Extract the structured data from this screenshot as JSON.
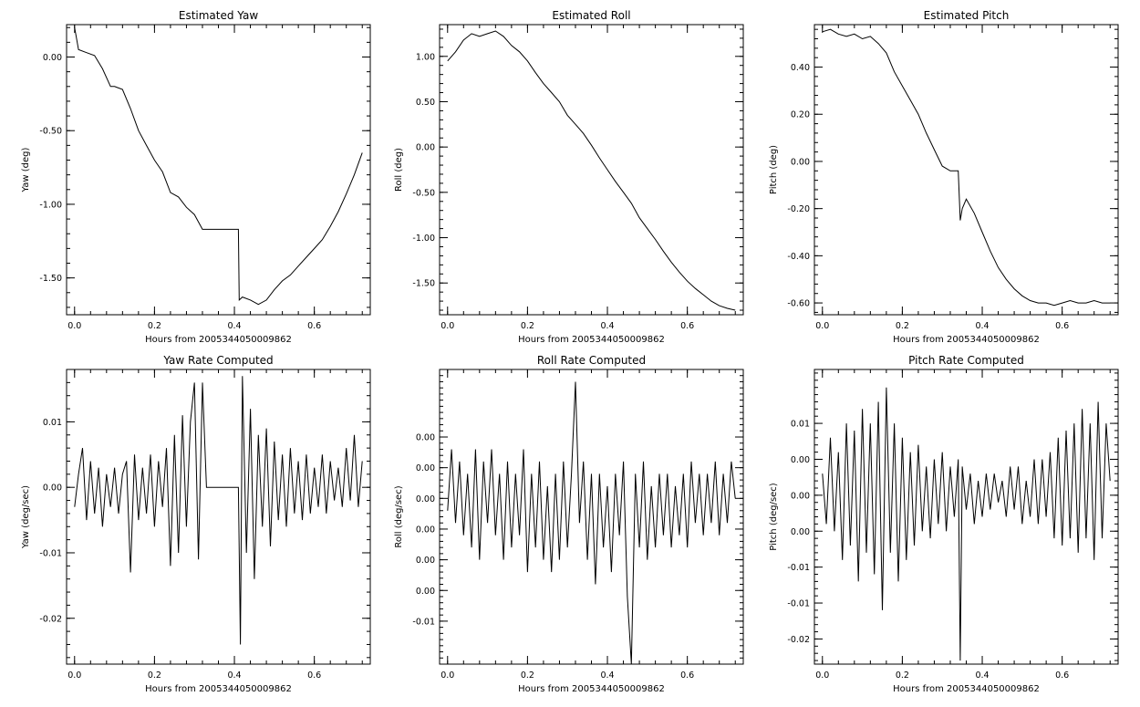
{
  "chart_data": [
    {
      "type": "line",
      "title": "Estimated Yaw",
      "xlabel": "Hours from 2005344050009862",
      "ylabel": "Yaw (deg)",
      "xlim": [
        -0.02,
        0.74
      ],
      "ylim": [
        -1.75,
        0.22
      ],
      "xticks": [
        0.0,
        0.2,
        0.4,
        0.6
      ],
      "xtick_labels": [
        "0.0",
        "0.2",
        "0.4",
        "0.6"
      ],
      "yticks": [
        0.0,
        -0.5,
        -1.0,
        -1.5
      ],
      "ytick_labels": [
        "0.00",
        "-0.50",
        "-1.00",
        "-1.50"
      ],
      "series": [
        {
          "x": [
            0.0,
            0.01,
            0.03,
            0.05,
            0.07,
            0.09,
            0.1,
            0.12,
            0.14,
            0.16,
            0.18,
            0.2,
            0.22,
            0.24,
            0.26,
            0.28,
            0.3,
            0.32,
            0.33,
            0.41,
            0.412,
            0.42,
            0.44,
            0.46,
            0.48,
            0.5,
            0.52,
            0.54,
            0.56,
            0.58,
            0.6,
            0.62,
            0.64,
            0.66,
            0.68,
            0.7,
            0.72
          ],
          "y": [
            0.2,
            0.05,
            0.03,
            0.01,
            -0.08,
            -0.2,
            -0.2,
            -0.22,
            -0.35,
            -0.5,
            -0.6,
            -0.7,
            -0.78,
            -0.92,
            -0.95,
            -1.02,
            -1.07,
            -1.17,
            -1.17,
            -1.17,
            -1.65,
            -1.63,
            -1.65,
            -1.68,
            -1.65,
            -1.58,
            -1.52,
            -1.48,
            -1.42,
            -1.36,
            -1.3,
            -1.24,
            -1.15,
            -1.05,
            -0.93,
            -0.8,
            -0.65
          ]
        }
      ]
    },
    {
      "type": "line",
      "title": "Estimated Roll",
      "xlabel": "Hours from 2005344050009862",
      "ylabel": "Roll (deg)",
      "xlim": [
        -0.02,
        0.74
      ],
      "ylim": [
        -1.85,
        1.35
      ],
      "xticks": [
        0.0,
        0.2,
        0.4,
        0.6
      ],
      "xtick_labels": [
        "0.0",
        "0.2",
        "0.4",
        "0.6"
      ],
      "yticks": [
        1.0,
        0.5,
        0.0,
        -0.5,
        -1.0,
        -1.5
      ],
      "ytick_labels": [
        "1.00",
        "0.50",
        "0.00",
        "-0.50",
        "-1.00",
        "-1.50"
      ],
      "series": [
        {
          "x": [
            0.0,
            0.02,
            0.04,
            0.06,
            0.08,
            0.1,
            0.12,
            0.14,
            0.16,
            0.18,
            0.2,
            0.22,
            0.24,
            0.26,
            0.28,
            0.3,
            0.32,
            0.34,
            0.36,
            0.38,
            0.4,
            0.42,
            0.44,
            0.46,
            0.48,
            0.5,
            0.52,
            0.54,
            0.56,
            0.58,
            0.6,
            0.62,
            0.64,
            0.66,
            0.68,
            0.7,
            0.72
          ],
          "y": [
            0.95,
            1.05,
            1.18,
            1.25,
            1.22,
            1.25,
            1.28,
            1.22,
            1.12,
            1.05,
            0.95,
            0.82,
            0.7,
            0.6,
            0.5,
            0.35,
            0.25,
            0.15,
            0.02,
            -0.12,
            -0.25,
            -0.38,
            -0.5,
            -0.62,
            -0.78,
            -0.9,
            -1.02,
            -1.15,
            -1.27,
            -1.38,
            -1.48,
            -1.56,
            -1.63,
            -1.7,
            -1.75,
            -1.78,
            -1.8
          ]
        }
      ]
    },
    {
      "type": "line",
      "title": "Estimated Pitch",
      "xlabel": "Hours from 2005344050009862",
      "ylabel": "Pitch (deg)",
      "xlim": [
        -0.02,
        0.74
      ],
      "ylim": [
        -0.65,
        0.58
      ],
      "xticks": [
        0.0,
        0.2,
        0.4,
        0.6
      ],
      "xtick_labels": [
        "0.0",
        "0.2",
        "0.4",
        "0.6"
      ],
      "yticks": [
        0.4,
        0.2,
        0.0,
        -0.2,
        -0.4,
        -0.6
      ],
      "ytick_labels": [
        "0.40",
        "0.20",
        "0.00",
        "-0.20",
        "-0.40",
        "-0.60"
      ],
      "series": [
        {
          "x": [
            0.0,
            0.02,
            0.04,
            0.06,
            0.08,
            0.1,
            0.12,
            0.14,
            0.16,
            0.18,
            0.2,
            0.22,
            0.24,
            0.26,
            0.28,
            0.3,
            0.32,
            0.33,
            0.34,
            0.345,
            0.35,
            0.36,
            0.38,
            0.4,
            0.42,
            0.44,
            0.46,
            0.48,
            0.5,
            0.52,
            0.54,
            0.56,
            0.58,
            0.6,
            0.62,
            0.64,
            0.66,
            0.68,
            0.7,
            0.72
          ],
          "y": [
            0.55,
            0.56,
            0.54,
            0.53,
            0.54,
            0.52,
            0.53,
            0.5,
            0.46,
            0.38,
            0.32,
            0.26,
            0.2,
            0.12,
            0.05,
            -0.02,
            -0.04,
            -0.04,
            -0.04,
            -0.25,
            -0.2,
            -0.16,
            -0.22,
            -0.3,
            -0.38,
            -0.45,
            -0.5,
            -0.54,
            -0.57,
            -0.59,
            -0.6,
            -0.6,
            -0.61,
            -0.6,
            -0.59,
            -0.6,
            -0.6,
            -0.59,
            -0.6,
            -0.6
          ]
        }
      ]
    },
    {
      "type": "line",
      "title": "Yaw Rate Computed",
      "xlabel": "Hours from 2005344050009862",
      "ylabel": "Yaw (deg/sec)",
      "xlim": [
        -0.02,
        0.74
      ],
      "ylim": [
        -0.027,
        0.018
      ],
      "xticks": [
        0.0,
        0.2,
        0.4,
        0.6
      ],
      "xtick_labels": [
        "0.0",
        "0.2",
        "0.4",
        "0.6"
      ],
      "yticks": [
        0.01,
        0.0,
        -0.01,
        -0.02
      ],
      "ytick_labels": [
        "0.01",
        "0.00",
        "-0.01",
        "-0.02"
      ],
      "series": [
        {
          "x": [
            0.0,
            0.01,
            0.02,
            0.03,
            0.04,
            0.05,
            0.06,
            0.07,
            0.08,
            0.09,
            0.1,
            0.11,
            0.12,
            0.13,
            0.14,
            0.15,
            0.16,
            0.17,
            0.18,
            0.19,
            0.2,
            0.21,
            0.22,
            0.23,
            0.24,
            0.25,
            0.26,
            0.27,
            0.28,
            0.29,
            0.3,
            0.31,
            0.32,
            0.33,
            0.41,
            0.415,
            0.42,
            0.43,
            0.44,
            0.45,
            0.46,
            0.47,
            0.48,
            0.49,
            0.5,
            0.51,
            0.52,
            0.53,
            0.54,
            0.55,
            0.56,
            0.57,
            0.58,
            0.59,
            0.6,
            0.61,
            0.62,
            0.63,
            0.64,
            0.65,
            0.66,
            0.67,
            0.68,
            0.69,
            0.7,
            0.71,
            0.72
          ],
          "y": [
            -0.003,
            0.002,
            0.006,
            -0.005,
            0.004,
            -0.004,
            0.003,
            -0.006,
            0.002,
            -0.003,
            0.003,
            -0.004,
            0.002,
            0.004,
            -0.013,
            0.005,
            -0.005,
            0.003,
            -0.004,
            0.005,
            -0.006,
            0.004,
            -0.003,
            0.006,
            -0.012,
            0.008,
            -0.01,
            0.011,
            -0.006,
            0.01,
            0.016,
            -0.011,
            0.016,
            0.0,
            0.0,
            -0.024,
            0.017,
            -0.01,
            0.012,
            -0.014,
            0.008,
            -0.006,
            0.009,
            -0.009,
            0.007,
            -0.005,
            0.005,
            -0.006,
            0.006,
            -0.004,
            0.004,
            -0.005,
            0.005,
            -0.004,
            0.003,
            -0.003,
            0.005,
            -0.004,
            0.004,
            -0.002,
            0.003,
            -0.003,
            0.006,
            -0.002,
            0.008,
            -0.003,
            0.004
          ]
        }
      ]
    },
    {
      "type": "line",
      "title": "Roll Rate Computed",
      "xlabel": "Hours from 2005344050009862",
      "ylabel": "Roll (deg/sec)",
      "xlim": [
        -0.02,
        0.74
      ],
      "ylim": [
        -0.0135,
        0.0105
      ],
      "xticks": [
        0.0,
        0.2,
        0.4,
        0.6
      ],
      "xtick_labels": [
        "0.0",
        "0.2",
        "0.4",
        "0.6"
      ],
      "yticks": [
        0.005,
        0.0025,
        0.0,
        -0.0025,
        -0.005,
        -0.0075,
        -0.01
      ],
      "ytick_labels": [
        "0.00",
        "0.00",
        "0.00",
        "0.00",
        "0.00",
        "0.00",
        "-0.01"
      ],
      "series": [
        {
          "x": [
            0.0,
            0.01,
            0.02,
            0.03,
            0.04,
            0.05,
            0.06,
            0.07,
            0.08,
            0.09,
            0.1,
            0.11,
            0.12,
            0.13,
            0.14,
            0.15,
            0.16,
            0.17,
            0.18,
            0.19,
            0.2,
            0.21,
            0.22,
            0.23,
            0.24,
            0.25,
            0.26,
            0.27,
            0.28,
            0.29,
            0.3,
            0.31,
            0.32,
            0.33,
            0.34,
            0.35,
            0.36,
            0.37,
            0.38,
            0.39,
            0.4,
            0.41,
            0.42,
            0.43,
            0.44,
            0.45,
            0.46,
            0.47,
            0.48,
            0.49,
            0.5,
            0.51,
            0.52,
            0.53,
            0.54,
            0.55,
            0.56,
            0.57,
            0.58,
            0.59,
            0.6,
            0.61,
            0.62,
            0.63,
            0.64,
            0.65,
            0.66,
            0.67,
            0.68,
            0.69,
            0.7,
            0.71,
            0.72
          ],
          "y": [
            -0.001,
            0.004,
            -0.002,
            0.003,
            -0.003,
            0.002,
            -0.004,
            0.004,
            -0.005,
            0.003,
            -0.002,
            0.004,
            -0.003,
            0.002,
            -0.005,
            0.003,
            -0.004,
            0.002,
            -0.003,
            0.004,
            -0.006,
            0.002,
            -0.004,
            0.003,
            -0.005,
            0.001,
            -0.006,
            0.002,
            -0.005,
            0.003,
            -0.004,
            0.002,
            0.0095,
            -0.002,
            0.003,
            -0.005,
            0.002,
            -0.007,
            0.002,
            -0.004,
            0.001,
            -0.006,
            0.002,
            -0.003,
            0.003,
            -0.008,
            -0.0135,
            0.002,
            -0.004,
            0.003,
            -0.005,
            0.001,
            -0.004,
            0.002,
            -0.003,
            0.002,
            -0.004,
            0.001,
            -0.003,
            0.002,
            -0.004,
            0.003,
            -0.002,
            0.002,
            -0.003,
            0.002,
            -0.002,
            0.003,
            -0.003,
            0.002,
            -0.002,
            0.003,
            0.0
          ]
        }
      ]
    },
    {
      "type": "line",
      "title": "Pitch Rate Computed",
      "xlabel": "Hours from 2005344050009862",
      "ylabel": "Pitch (deg/sec)",
      "xlim": [
        -0.02,
        0.74
      ],
      "ylim": [
        -0.0235,
        0.0175
      ],
      "xticks": [
        0.0,
        0.2,
        0.4,
        0.6
      ],
      "xtick_labels": [
        "0.0",
        "0.2",
        "0.4",
        "0.6"
      ],
      "yticks": [
        0.01,
        0.005,
        0.0,
        -0.005,
        -0.01,
        -0.015,
        -0.02
      ],
      "ytick_labels": [
        "0.01",
        "0.00",
        "0.00",
        "0.00",
        "-0.01",
        "-0.01",
        "-0.02"
      ],
      "series": [
        {
          "x": [
            0.0,
            0.01,
            0.02,
            0.03,
            0.04,
            0.05,
            0.06,
            0.07,
            0.08,
            0.09,
            0.1,
            0.11,
            0.12,
            0.13,
            0.14,
            0.15,
            0.16,
            0.17,
            0.18,
            0.19,
            0.2,
            0.21,
            0.22,
            0.23,
            0.24,
            0.25,
            0.26,
            0.27,
            0.28,
            0.29,
            0.3,
            0.31,
            0.32,
            0.33,
            0.34,
            0.345,
            0.35,
            0.36,
            0.37,
            0.38,
            0.39,
            0.4,
            0.41,
            0.42,
            0.43,
            0.44,
            0.45,
            0.46,
            0.47,
            0.48,
            0.49,
            0.5,
            0.51,
            0.52,
            0.53,
            0.54,
            0.55,
            0.56,
            0.57,
            0.58,
            0.59,
            0.6,
            0.61,
            0.62,
            0.63,
            0.64,
            0.65,
            0.66,
            0.67,
            0.68,
            0.69,
            0.7,
            0.71,
            0.72
          ],
          "y": [
            0.003,
            -0.004,
            0.008,
            -0.005,
            0.006,
            -0.009,
            0.01,
            -0.007,
            0.009,
            -0.012,
            0.012,
            -0.008,
            0.01,
            -0.011,
            0.013,
            -0.016,
            0.015,
            -0.008,
            0.01,
            -0.012,
            0.008,
            -0.009,
            0.006,
            -0.007,
            0.007,
            -0.005,
            0.004,
            -0.006,
            0.005,
            -0.004,
            0.006,
            -0.005,
            0.004,
            -0.003,
            0.005,
            -0.023,
            0.004,
            -0.002,
            0.003,
            -0.004,
            0.002,
            -0.003,
            0.003,
            -0.002,
            0.003,
            -0.001,
            0.002,
            -0.003,
            0.004,
            -0.002,
            0.004,
            -0.004,
            0.002,
            -0.003,
            0.005,
            -0.004,
            0.005,
            -0.003,
            0.006,
            -0.006,
            0.008,
            -0.007,
            0.009,
            -0.006,
            0.01,
            -0.008,
            0.012,
            -0.006,
            0.01,
            -0.009,
            0.013,
            -0.006,
            0.01,
            0.002
          ]
        }
      ]
    }
  ]
}
